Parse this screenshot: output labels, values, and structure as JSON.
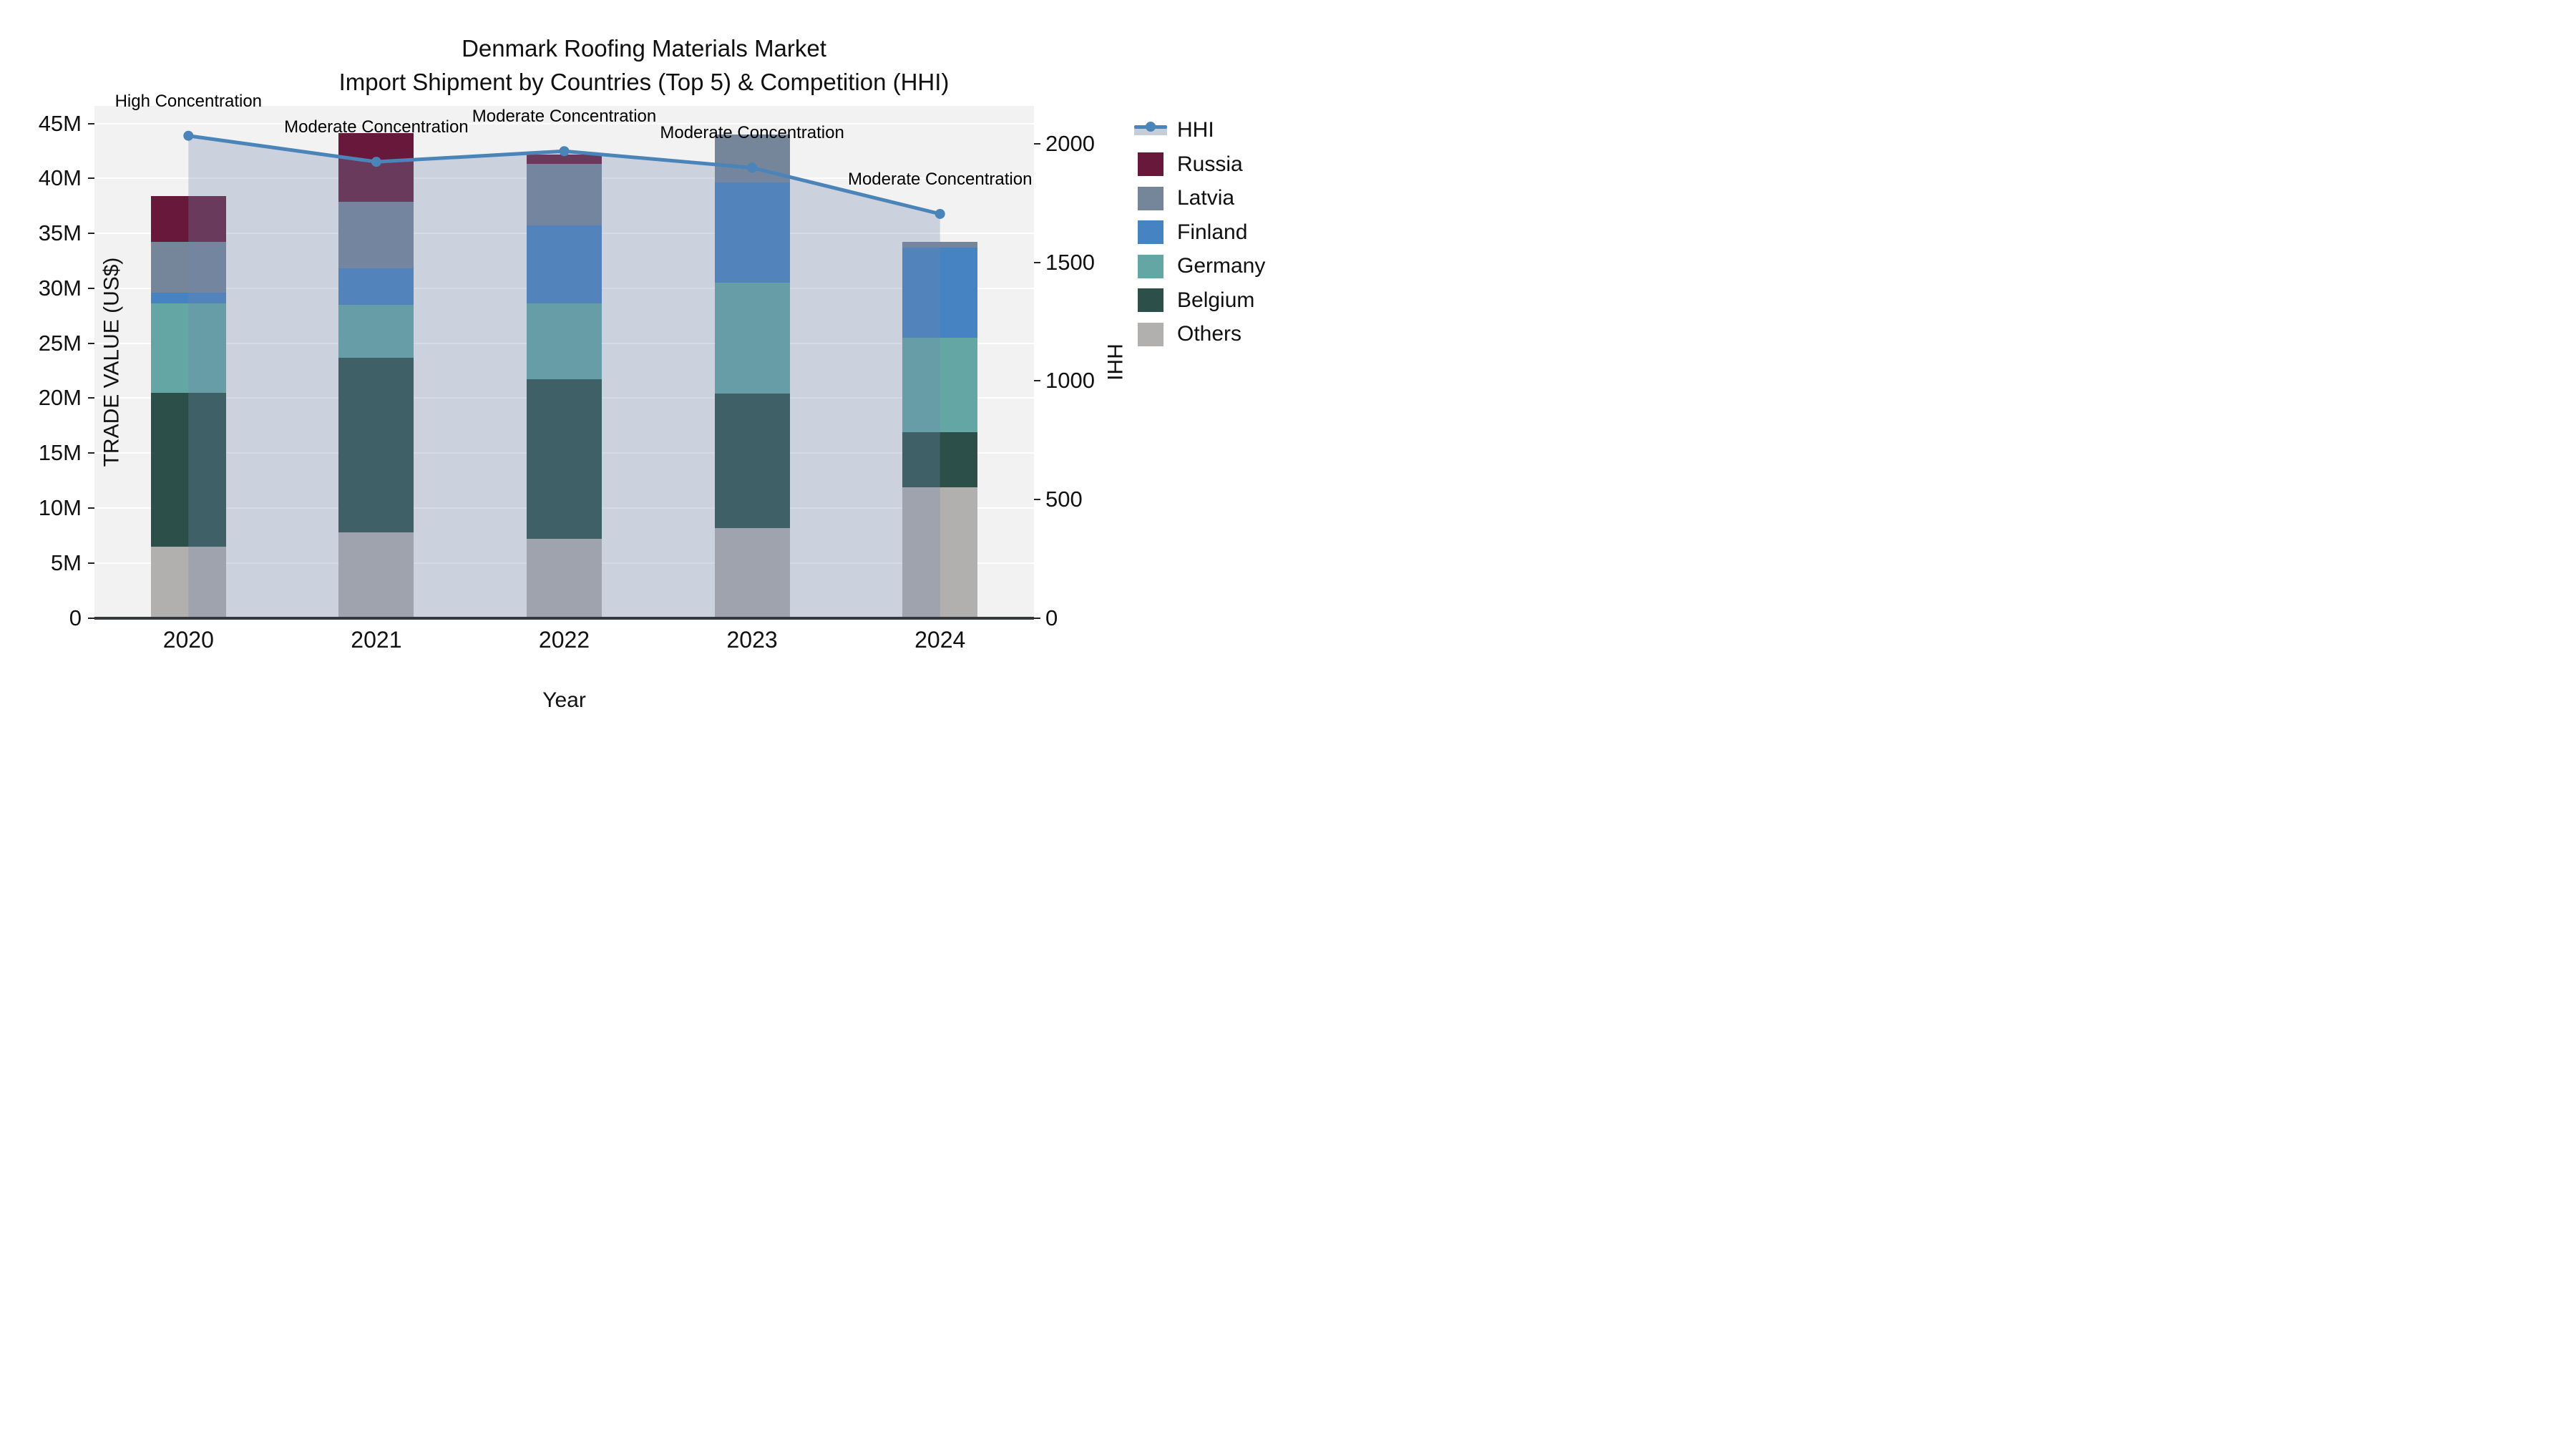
{
  "title": {
    "line1": "Denmark Roofing Materials Market",
    "line2": "Import Shipment by Countries (Top 5) & Competition (HHI)"
  },
  "axes": {
    "x": {
      "title": "Year",
      "categories": [
        "2020",
        "2021",
        "2022",
        "2023",
        "2024"
      ]
    },
    "y": {
      "title": "TRADE VALUE (US$)",
      "tick_labels": [
        "0",
        "5M",
        "10M",
        "15M",
        "20M",
        "25M",
        "30M",
        "35M",
        "40M",
        "45M"
      ],
      "tick_values_m": [
        0,
        5,
        10,
        15,
        20,
        25,
        30,
        35,
        40,
        45
      ],
      "max_m": 46.6
    },
    "y2": {
      "title": "HHI",
      "tick_labels": [
        "0",
        "500",
        "1000",
        "1500",
        "2000"
      ],
      "tick_values": [
        0,
        500,
        1000,
        1500,
        2000
      ],
      "max": 2161
    }
  },
  "legend": [
    {
      "label": "HHI",
      "type": "line",
      "color": "#4a84b8"
    },
    {
      "label": "Russia",
      "type": "swatch",
      "color": "#68193b"
    },
    {
      "label": "Latvia",
      "type": "swatch",
      "color": "#75859a"
    },
    {
      "label": "Finland",
      "type": "swatch",
      "color": "#4583c2"
    },
    {
      "label": "Germany",
      "type": "swatch",
      "color": "#63a6a4"
    },
    {
      "label": "Belgium",
      "type": "swatch",
      "color": "#2c4f49"
    },
    {
      "label": "Others",
      "type": "swatch",
      "color": "#b2afaf"
    }
  ],
  "chart_data": {
    "type": "bar",
    "subtype": "stacked-bars-with-line",
    "title": "Denmark Roofing Materials Market — Import Shipment by Countries (Top 5) & Competition (HHI)",
    "xlabel": "Year",
    "ylabel": "TRADE VALUE (US$)",
    "y2label": "HHI",
    "categories": [
      "2020",
      "2021",
      "2022",
      "2023",
      "2024"
    ],
    "stack_order_bottom_to_top": [
      "Others",
      "Belgium",
      "Germany",
      "Finland",
      "Latvia",
      "Russia"
    ],
    "series": [
      {
        "name": "Others",
        "color": "#b2afaf",
        "values_musd": [
          6.5,
          7.8,
          7.2,
          8.2,
          11.9
        ]
      },
      {
        "name": "Belgium",
        "color": "#2c4f49",
        "values_musd": [
          14.0,
          15.9,
          14.5,
          12.2,
          5.0
        ]
      },
      {
        "name": "Germany",
        "color": "#63a6a4",
        "values_musd": [
          8.1,
          4.8,
          6.9,
          10.1,
          8.6
        ]
      },
      {
        "name": "Finland",
        "color": "#4583c2",
        "values_musd": [
          1.0,
          3.3,
          7.1,
          9.1,
          8.2
        ]
      },
      {
        "name": "Latvia",
        "color": "#75859a",
        "values_musd": [
          4.6,
          6.1,
          5.6,
          4.4,
          0.5
        ]
      },
      {
        "name": "Russia",
        "color": "#68193b",
        "values_musd": [
          4.2,
          6.2,
          0.9,
          0.0,
          0.0
        ]
      }
    ],
    "bar_totals_musd": [
      38.4,
      44.1,
      42.2,
      44.0,
      34.2
    ],
    "line_series": {
      "name": "HHI",
      "axis": "y2",
      "color": "#4a84b8",
      "fill_color": "rgba(112,135,172,0.30)",
      "values": [
        2035,
        1925,
        1970,
        1900,
        1705
      ]
    },
    "annotations": [
      {
        "x": "2020",
        "label": "High Concentration"
      },
      {
        "x": "2021",
        "label": "Moderate Concentration"
      },
      {
        "x": "2022",
        "label": "Moderate Concentration"
      },
      {
        "x": "2023",
        "label": "Moderate Concentration"
      },
      {
        "x": "2024",
        "label": "Moderate Concentration"
      }
    ],
    "ylim_musd": [
      0,
      46.6
    ],
    "y2lim": [
      0,
      2161
    ],
    "grid": "horizontal-white-on-lightgray",
    "legend_position": "top-right-outside",
    "plot_bg": "#f2f2f2"
  },
  "colors": {
    "figure_bg": "#ffffff",
    "plot_bg": "#f2f2f2",
    "gridline": "#ffffff",
    "axis_line": "#35383c",
    "text": "#101010",
    "hhi_line": "#4a84b8",
    "hhi_fill": "rgba(112,135,172,0.30)",
    "hhi_legend_band": "#c7cdd8"
  }
}
